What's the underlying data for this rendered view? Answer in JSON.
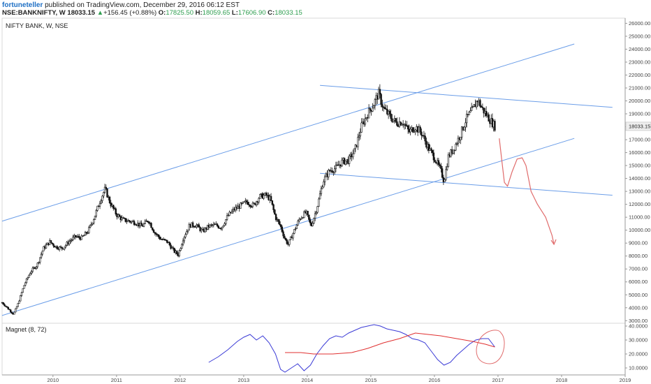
{
  "header": {
    "author": "fortuneteller",
    "published": "published on TradingView.com, December 29, 2016 06:12 EST",
    "symbol": "NSE:BANKNIFTY, W",
    "price": "18033.15",
    "change_arrow": "▲",
    "change": "+156.45 (+0.88%)",
    "o_label": "O:",
    "o_value": "17825.50",
    "h_label": "H:",
    "h_value": "18059.65",
    "l_label": "L:",
    "l_value": "17606.90",
    "c_label": "C:",
    "c_value": "18033.15"
  },
  "colors": {
    "candle": "#111111",
    "trendline": "#6a9de8",
    "forecast": "#e06b6b",
    "indicator_line": "#3b3bd6",
    "indicator_signal": "#e03030"
  },
  "chart_data": [
    {
      "type": "candlestick",
      "title": "NIFTY BANK, W, NSE",
      "x_tick_labels": [
        "2010",
        "2011",
        "2012",
        "2013",
        "2014",
        "2015",
        "2016",
        "2017",
        "2018",
        "2019"
      ],
      "y_tick_labels": [
        "3000.00",
        "4000.00",
        "5000.00",
        "6000.00",
        "7000.00",
        "8000.00",
        "9000.00",
        "10000.00",
        "11000.00",
        "12000.00",
        "13000.00",
        "14000.00",
        "15000.00",
        "16000.00",
        "17000.00",
        "18000.00",
        "19000.00",
        "20000.00",
        "21000.00",
        "22000.00",
        "23000.00",
        "24000.00",
        "25000.00",
        "26000.00"
      ],
      "ylim": [
        2800,
        26400
      ],
      "xlim": [
        2009.2,
        2019.0
      ],
      "last_price": "18033.15",
      "series_close_approx": [
        [
          2009.2,
          4400
        ],
        [
          2009.3,
          3900
        ],
        [
          2009.38,
          3500
        ],
        [
          2009.45,
          4300
        ],
        [
          2009.55,
          5800
        ],
        [
          2009.65,
          6800
        ],
        [
          2009.75,
          7300
        ],
        [
          2009.85,
          8600
        ],
        [
          2009.95,
          9100
        ],
        [
          2010.05,
          8700
        ],
        [
          2010.15,
          8600
        ],
        [
          2010.25,
          9100
        ],
        [
          2010.35,
          9500
        ],
        [
          2010.45,
          9400
        ],
        [
          2010.55,
          9900
        ],
        [
          2010.65,
          11000
        ],
        [
          2010.75,
          12400
        ],
        [
          2010.82,
          13200
        ],
        [
          2010.9,
          12100
        ],
        [
          2011.0,
          11200
        ],
        [
          2011.1,
          10800
        ],
        [
          2011.2,
          10700
        ],
        [
          2011.3,
          10600
        ],
        [
          2011.4,
          10300
        ],
        [
          2011.5,
          10800
        ],
        [
          2011.6,
          9800
        ],
        [
          2011.7,
          9300
        ],
        [
          2011.8,
          9100
        ],
        [
          2011.9,
          8400
        ],
        [
          2011.97,
          8100
        ],
        [
          2012.05,
          9400
        ],
        [
          2012.15,
          10400
        ],
        [
          2012.25,
          10400
        ],
        [
          2012.35,
          9900
        ],
        [
          2012.45,
          10300
        ],
        [
          2012.55,
          10400
        ],
        [
          2012.65,
          10200
        ],
        [
          2012.75,
          11100
        ],
        [
          2012.85,
          11600
        ],
        [
          2012.95,
          11900
        ],
        [
          2013.05,
          12200
        ],
        [
          2013.15,
          11900
        ],
        [
          2013.25,
          12600
        ],
        [
          2013.35,
          12700
        ],
        [
          2013.42,
          12400
        ],
        [
          2013.5,
          11000
        ],
        [
          2013.58,
          10300
        ],
        [
          2013.65,
          9300
        ],
        [
          2013.7,
          8900
        ],
        [
          2013.78,
          9800
        ],
        [
          2013.88,
          10900
        ],
        [
          2013.98,
          11400
        ],
        [
          2014.06,
          10300
        ],
        [
          2014.15,
          11700
        ],
        [
          2014.25,
          13800
        ],
        [
          2014.35,
          14600
        ],
        [
          2014.45,
          14800
        ],
        [
          2014.55,
          15300
        ],
        [
          2014.65,
          15400
        ],
        [
          2014.75,
          16200
        ],
        [
          2014.85,
          18000
        ],
        [
          2014.95,
          19000
        ],
        [
          2015.05,
          19800
        ],
        [
          2015.12,
          20600
        ],
        [
          2015.2,
          19400
        ],
        [
          2015.3,
          18800
        ],
        [
          2015.4,
          18300
        ],
        [
          2015.5,
          18400
        ],
        [
          2015.6,
          17600
        ],
        [
          2015.7,
          18000
        ],
        [
          2015.8,
          17500
        ],
        [
          2015.9,
          16400
        ],
        [
          2016.0,
          15600
        ],
        [
          2016.1,
          14600
        ],
        [
          2016.15,
          13800
        ],
        [
          2016.22,
          15700
        ],
        [
          2016.3,
          16300
        ],
        [
          2016.4,
          17300
        ],
        [
          2016.5,
          18600
        ],
        [
          2016.6,
          19300
        ],
        [
          2016.68,
          20100
        ],
        [
          2016.75,
          19400
        ],
        [
          2016.85,
          18700
        ],
        [
          2016.95,
          18033
        ]
      ],
      "trend_channel": {
        "upper": [
          [
            2009.2,
            10700
          ],
          [
            2018.2,
            24400
          ]
        ],
        "lower": [
          [
            2009.2,
            3400
          ],
          [
            2018.2,
            17100
          ]
        ]
      },
      "descending_channel": {
        "upper": [
          [
            2014.2,
            21200
          ],
          [
            2018.8,
            19500
          ]
        ],
        "lower": [
          [
            2014.2,
            14400
          ],
          [
            2018.8,
            12700
          ]
        ]
      },
      "forecast_path": [
        [
          2017.02,
          17100
        ],
        [
          2017.06,
          15400
        ],
        [
          2017.1,
          13700
        ],
        [
          2017.15,
          13400
        ],
        [
          2017.22,
          14500
        ],
        [
          2017.3,
          15500
        ],
        [
          2017.38,
          15600
        ],
        [
          2017.44,
          15000
        ],
        [
          2017.52,
          13000
        ],
        [
          2017.62,
          12000
        ],
        [
          2017.75,
          11000
        ],
        [
          2017.85,
          9600
        ],
        [
          2017.88,
          8900
        ]
      ]
    },
    {
      "type": "line",
      "title": "Magnet (8, 72)",
      "y_tick_labels": [
        "10.0000",
        "20.0000",
        "30.0000",
        "40.0000"
      ],
      "ylim": [
        5,
        42
      ],
      "series": [
        {
          "values": [
            [
              2012.45,
              14
            ],
            [
              2012.6,
              18
            ],
            [
              2012.75,
              23
            ],
            [
              2012.9,
              29
            ],
            [
              2013.0,
              32
            ],
            [
              2013.1,
              34
            ],
            [
              2013.2,
              30
            ],
            [
              2013.3,
              33
            ],
            [
              2013.4,
              28
            ],
            [
              2013.5,
              20
            ],
            [
              2013.58,
              9
            ],
            [
              2013.65,
              7
            ],
            [
              2013.75,
              10
            ],
            [
              2013.85,
              13
            ],
            [
              2013.95,
              8
            ],
            [
              2014.05,
              12
            ],
            [
              2014.15,
              20
            ],
            [
              2014.25,
              26
            ],
            [
              2014.35,
              31
            ],
            [
              2014.45,
              33
            ],
            [
              2014.55,
              32
            ],
            [
              2014.65,
              35
            ],
            [
              2014.75,
              37
            ],
            [
              2014.85,
              39
            ],
            [
              2014.95,
              40
            ],
            [
              2015.05,
              41
            ],
            [
              2015.15,
              40
            ],
            [
              2015.25,
              38
            ],
            [
              2015.35,
              37
            ],
            [
              2015.45,
              36
            ],
            [
              2015.55,
              34
            ],
            [
              2015.65,
              31
            ],
            [
              2015.75,
              30
            ],
            [
              2015.85,
              28
            ],
            [
              2015.95,
              22
            ],
            [
              2016.05,
              16
            ],
            [
              2016.15,
              12
            ],
            [
              2016.25,
              14
            ],
            [
              2016.35,
              19
            ],
            [
              2016.45,
              23
            ],
            [
              2016.55,
              27
            ],
            [
              2016.65,
              30
            ],
            [
              2016.75,
              31
            ],
            [
              2016.85,
              31
            ],
            [
              2016.95,
              25
            ]
          ]
        },
        {
          "values": [
            [
              2013.65,
              21
            ],
            [
              2013.9,
              21
            ],
            [
              2014.1,
              20
            ],
            [
              2014.4,
              20
            ],
            [
              2014.7,
              21
            ],
            [
              2014.95,
              24
            ],
            [
              2015.2,
              28
            ],
            [
              2015.45,
              31
            ],
            [
              2015.7,
              35
            ],
            [
              2015.9,
              34
            ],
            [
              2016.1,
              33
            ],
            [
              2016.35,
              31
            ],
            [
              2016.6,
              29
            ],
            [
              2016.8,
              27
            ],
            [
              2016.95,
              25
            ]
          ]
        }
      ],
      "annotation_circle": {
        "center": [
          2016.85,
          25
        ],
        "note": "hand-drawn red circle"
      }
    }
  ]
}
